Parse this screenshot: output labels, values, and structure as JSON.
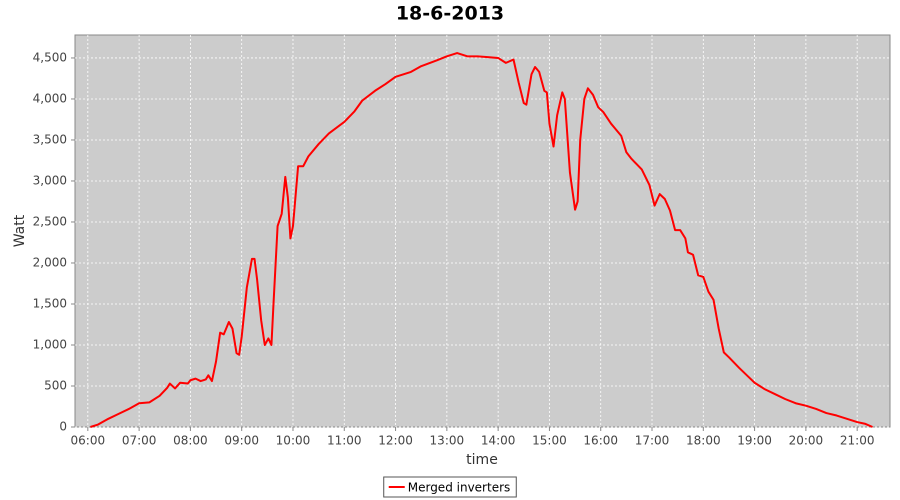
{
  "chart_data": {
    "type": "line",
    "title": "18-6-2013",
    "x_label": "time",
    "y_label": "Watt",
    "x": [
      6.05,
      6.2,
      6.4,
      6.6,
      6.8,
      7.0,
      7.2,
      7.4,
      7.55,
      7.6,
      7.7,
      7.8,
      7.95,
      8.0,
      8.1,
      8.2,
      8.3,
      8.35,
      8.42,
      8.5,
      8.58,
      8.65,
      8.75,
      8.82,
      8.9,
      8.95,
      9.0,
      9.1,
      9.2,
      9.25,
      9.3,
      9.38,
      9.45,
      9.52,
      9.58,
      9.62,
      9.7,
      9.78,
      9.85,
      9.9,
      9.95,
      10.0,
      10.1,
      10.2,
      10.3,
      10.5,
      10.7,
      11.0,
      11.2,
      11.35,
      11.6,
      11.8,
      12.0,
      12.3,
      12.5,
      12.8,
      13.0,
      13.2,
      13.4,
      13.6,
      13.8,
      14.0,
      14.15,
      14.3,
      14.4,
      14.5,
      14.55,
      14.65,
      14.72,
      14.8,
      14.9,
      14.95,
      15.0,
      15.08,
      15.15,
      15.25,
      15.3,
      15.4,
      15.5,
      15.55,
      15.6,
      15.68,
      15.75,
      15.85,
      15.95,
      16.05,
      16.2,
      16.4,
      16.5,
      16.6,
      16.8,
      16.95,
      17.05,
      17.15,
      17.25,
      17.35,
      17.45,
      17.55,
      17.65,
      17.7,
      17.8,
      17.9,
      18.0,
      18.1,
      18.2,
      18.3,
      18.4,
      18.5,
      18.7,
      18.9,
      19.0,
      19.2,
      19.4,
      19.6,
      19.8,
      20.0,
      20.2,
      20.4,
      20.6,
      20.8,
      21.0,
      21.15,
      21.3
    ],
    "series": [
      {
        "name": "Merged inverters",
        "color": "#ff0000",
        "values": [
          0,
          30,
          100,
          160,
          220,
          290,
          300,
          380,
          480,
          530,
          470,
          540,
          530,
          570,
          590,
          560,
          580,
          630,
          560,
          800,
          1150,
          1130,
          1280,
          1200,
          900,
          880,
          1100,
          1700,
          2050,
          2050,
          1800,
          1300,
          1000,
          1080,
          1000,
          1500,
          2450,
          2600,
          3050,
          2800,
          2300,
          2450,
          3180,
          3180,
          3300,
          3450,
          3580,
          3720,
          3850,
          3980,
          4100,
          4180,
          4270,
          4330,
          4400,
          4470,
          4520,
          4560,
          4520,
          4520,
          4510,
          4500,
          4440,
          4480,
          4200,
          3950,
          3930,
          4300,
          4390,
          4330,
          4100,
          4080,
          3700,
          3420,
          3800,
          4080,
          4000,
          3100,
          2650,
          2750,
          3500,
          4000,
          4130,
          4050,
          3900,
          3840,
          3700,
          3550,
          3350,
          3270,
          3140,
          2950,
          2700,
          2840,
          2780,
          2640,
          2400,
          2400,
          2300,
          2130,
          2100,
          1850,
          1830,
          1650,
          1550,
          1200,
          910,
          850,
          720,
          600,
          540,
          460,
          400,
          340,
          290,
          260,
          220,
          170,
          140,
          100,
          60,
          40,
          0
        ]
      }
    ],
    "xlim": [
      5.75,
      21.64
    ],
    "ylim": [
      0,
      4780
    ],
    "xticks": [
      {
        "value": 6,
        "label": "06:00"
      },
      {
        "value": 7,
        "label": "07:00"
      },
      {
        "value": 8,
        "label": "08:00"
      },
      {
        "value": 9,
        "label": "09:00"
      },
      {
        "value": 10,
        "label": "10:00"
      },
      {
        "value": 11,
        "label": "11:00"
      },
      {
        "value": 12,
        "label": "12:00"
      },
      {
        "value": 13,
        "label": "13:00"
      },
      {
        "value": 14,
        "label": "14:00"
      },
      {
        "value": 15,
        "label": "15:00"
      },
      {
        "value": 16,
        "label": "16:00"
      },
      {
        "value": 17,
        "label": "17:00"
      },
      {
        "value": 18,
        "label": "18:00"
      },
      {
        "value": 19,
        "label": "19:00"
      },
      {
        "value": 20,
        "label": "20:00"
      },
      {
        "value": 21,
        "label": "21:00"
      }
    ],
    "yticks": [
      0,
      500,
      {
        "value": 1000,
        "label": "1,000"
      },
      {
        "value": 1500,
        "label": "1,500"
      },
      {
        "value": 2000,
        "label": "2,000"
      },
      {
        "value": 2500,
        "label": "2,500"
      },
      {
        "value": 3000,
        "label": "3,000"
      },
      {
        "value": 3500,
        "label": "3,500"
      },
      {
        "value": 4000,
        "label": "4,000"
      },
      {
        "value": 4500,
        "label": "4,500"
      }
    ],
    "grid": true,
    "legend": "bottom"
  }
}
